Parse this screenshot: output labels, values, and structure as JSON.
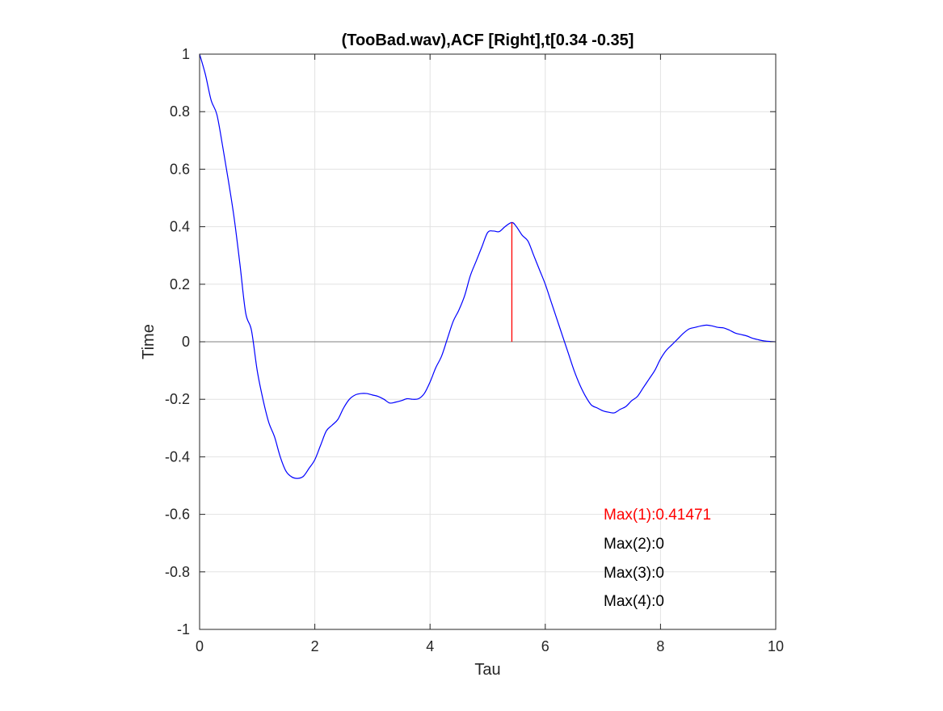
{
  "chart_data": {
    "type": "line",
    "title": "(TooBad.wav),ACF [Right],t[0.34 -0.35]",
    "xlabel": "Tau",
    "ylabel": "Time",
    "xlim": [
      0,
      10
    ],
    "ylim": [
      -1,
      1
    ],
    "grid": true,
    "x_ticks": [
      0,
      2,
      4,
      6,
      8,
      10
    ],
    "y_ticks": [
      -1,
      -0.8,
      -0.6,
      -0.4,
      -0.2,
      0,
      0.2,
      0.4,
      0.6,
      0.8,
      1
    ],
    "x_tick_labels": [
      "0",
      "2",
      "4",
      "6",
      "8",
      "10"
    ],
    "y_tick_labels": [
      "-1",
      "-0.8",
      "-0.6",
      "-0.4",
      "-0.2",
      "0",
      "0.2",
      "0.4",
      "0.6",
      "0.8",
      "1"
    ],
    "series": [
      {
        "color": "#0000ff",
        "x": [
          0,
          0.1,
          0.2,
          0.3,
          0.4,
          0.5,
          0.6,
          0.7,
          0.8,
          0.9,
          1.0,
          1.1,
          1.2,
          1.3,
          1.4,
          1.5,
          1.6,
          1.7,
          1.8,
          1.9,
          2.0,
          2.1,
          2.2,
          2.3,
          2.4,
          2.5,
          2.6,
          2.7,
          2.8,
          2.9,
          3.0,
          3.1,
          3.2,
          3.3,
          3.4,
          3.5,
          3.6,
          3.7,
          3.8,
          3.9,
          4.0,
          4.1,
          4.2,
          4.3,
          4.4,
          4.5,
          4.6,
          4.7,
          4.8,
          4.9,
          5.0,
          5.1,
          5.2,
          5.3,
          5.42,
          5.5,
          5.6,
          5.7,
          5.8,
          5.9,
          6.0,
          6.1,
          6.2,
          6.3,
          6.4,
          6.5,
          6.6,
          6.7,
          6.8,
          6.9,
          7.0,
          7.1,
          7.2,
          7.3,
          7.4,
          7.5,
          7.6,
          7.7,
          7.8,
          7.9,
          8.0,
          8.1,
          8.2,
          8.3,
          8.4,
          8.5,
          8.6,
          8.7,
          8.8,
          8.9,
          9.0,
          9.1,
          9.2,
          9.3,
          9.4,
          9.5,
          9.6,
          9.7,
          9.8,
          9.9,
          10.0
        ],
        "y": [
          1.0,
          0.93,
          0.84,
          0.79,
          0.68,
          0.56,
          0.43,
          0.27,
          0.1,
          0.04,
          -0.1,
          -0.2,
          -0.28,
          -0.33,
          -0.4,
          -0.45,
          -0.47,
          -0.475,
          -0.468,
          -0.44,
          -0.41,
          -0.36,
          -0.31,
          -0.29,
          -0.27,
          -0.23,
          -0.2,
          -0.185,
          -0.18,
          -0.18,
          -0.185,
          -0.19,
          -0.2,
          -0.213,
          -0.21,
          -0.205,
          -0.198,
          -0.2,
          -0.198,
          -0.18,
          -0.14,
          -0.09,
          -0.05,
          0.01,
          0.07,
          0.11,
          0.16,
          0.23,
          0.28,
          0.33,
          0.38,
          0.385,
          0.383,
          0.4,
          0.41471,
          0.4,
          0.37,
          0.35,
          0.3,
          0.25,
          0.2,
          0.14,
          0.08,
          0.02,
          -0.04,
          -0.1,
          -0.15,
          -0.19,
          -0.22,
          -0.23,
          -0.24,
          -0.245,
          -0.247,
          -0.235,
          -0.225,
          -0.205,
          -0.19,
          -0.16,
          -0.13,
          -0.1,
          -0.06,
          -0.03,
          -0.01,
          0.01,
          0.03,
          0.045,
          0.05,
          0.055,
          0.058,
          0.055,
          0.05,
          0.048,
          0.04,
          0.03,
          0.025,
          0.02,
          0.012,
          0.007,
          0.003,
          0.001,
          0.0
        ]
      }
    ],
    "stem": {
      "x": 5.42,
      "y": 0.41471,
      "color": "#ff0000"
    },
    "zero_line_color": "#808080",
    "annotations": [
      {
        "text": "Max(1):0.41471",
        "color": "#ff0000"
      },
      {
        "text": "Max(2):0",
        "color": "#000000"
      },
      {
        "text": "Max(3):0",
        "color": "#000000"
      },
      {
        "text": "Max(4):0",
        "color": "#000000"
      }
    ]
  }
}
